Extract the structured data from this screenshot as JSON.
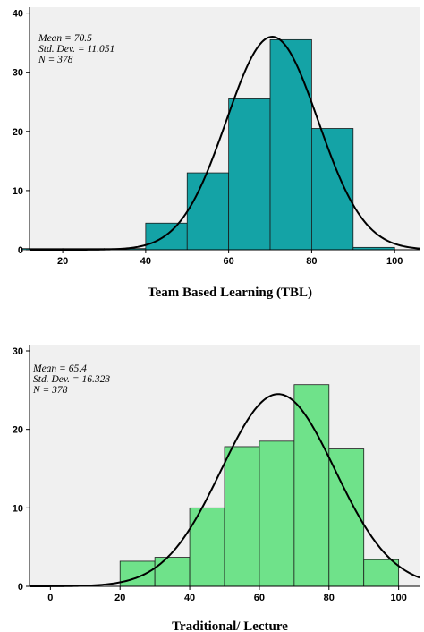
{
  "chart_data": [
    {
      "type": "bar",
      "title": "",
      "xlabel": "Team Based Learning (TBL)",
      "ylabel": "",
      "xlim": [
        12,
        106
      ],
      "ylim": [
        0,
        41
      ],
      "xticks": [
        20,
        40,
        60,
        80,
        100
      ],
      "yticks": [
        0,
        10,
        20,
        30,
        40
      ],
      "bins": [
        [
          10,
          20
        ],
        [
          20,
          30
        ],
        [
          30,
          40
        ],
        [
          40,
          50
        ],
        [
          50,
          60
        ],
        [
          60,
          70
        ],
        [
          70,
          80
        ],
        [
          80,
          90
        ],
        [
          90,
          100
        ]
      ],
      "values": [
        0.2,
        0.2,
        0.2,
        4.5,
        13,
        25.5,
        35.5,
        20.5,
        0.4
      ],
      "bar_color": "#14a3a6",
      "normal_curve": {
        "mean": 70.5,
        "sd": 11.051,
        "peak": 36
      },
      "stats": [
        "Mean = 70.5",
        "Std. Dev. = 11.051",
        "N = 378"
      ],
      "grid": false
    },
    {
      "type": "bar",
      "title": "",
      "xlabel": "Traditional/ Lecture",
      "ylabel": "",
      "xlim": [
        -6,
        106
      ],
      "ylim": [
        0,
        30.8
      ],
      "xticks": [
        0,
        20,
        40,
        60,
        80,
        100
      ],
      "yticks": [
        0,
        10,
        20,
        30
      ],
      "bins": [
        [
          20,
          30
        ],
        [
          30,
          40
        ],
        [
          40,
          50
        ],
        [
          50,
          60
        ],
        [
          60,
          70
        ],
        [
          70,
          80
        ],
        [
          80,
          90
        ],
        [
          90,
          100
        ]
      ],
      "values": [
        3.2,
        3.7,
        10,
        17.8,
        18.5,
        25.7,
        17.5,
        3.4
      ],
      "bar_color": "#6fe28a",
      "normal_curve": {
        "mean": 65.4,
        "sd": 16.323,
        "peak": 24.5
      },
      "stats": [
        "Mean = 65.4",
        "Std. Dev. = 16.323",
        "N = 378"
      ],
      "grid": false
    }
  ]
}
